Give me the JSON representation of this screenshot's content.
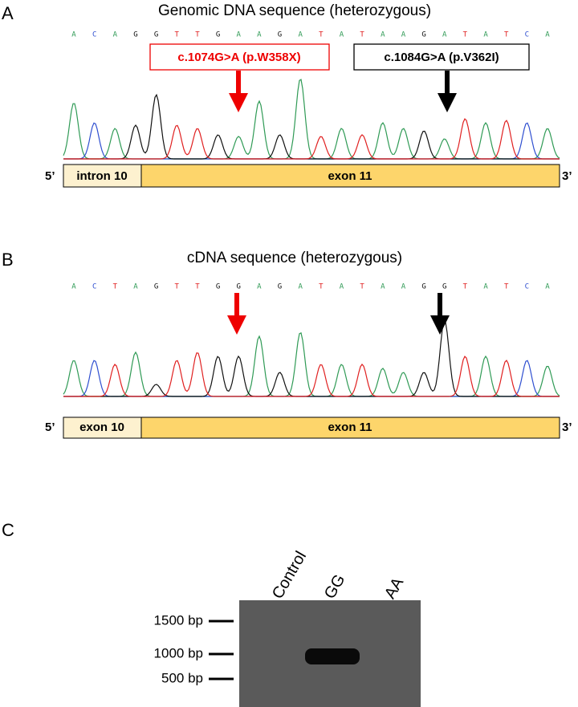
{
  "panel_a": {
    "label": "A",
    "title": "Genomic DNA sequence (heterozygous)",
    "bases": [
      "A",
      "C",
      "A",
      "G",
      "G",
      "T",
      "T",
      "G",
      "A",
      "A",
      "G",
      "A",
      "T",
      "A",
      "T",
      "A",
      "A",
      "G",
      "A",
      "T",
      "A",
      "T",
      "C",
      "A"
    ],
    "mutation_1": "c.1074G>A (p.W358X)",
    "mutation_2": "c.1084G>A (p.V362I)",
    "five_prime": "5’",
    "three_prime": "3’",
    "segment_1": "intron 10",
    "segment_2": "exon 11"
  },
  "panel_b": {
    "label": "B",
    "title": "cDNA sequence (heterozygous)",
    "bases": [
      "A",
      "C",
      "T",
      "A",
      "G",
      "T",
      "T",
      "G",
      "G",
      "A",
      "G",
      "A",
      "T",
      "A",
      "T",
      "A",
      "A",
      "G",
      "G",
      "T",
      "A",
      "T",
      "C",
      "A"
    ],
    "five_prime": "5’",
    "three_prime": "3’",
    "segment_1": "exon 10",
    "segment_2": "exon 11"
  },
  "panel_c": {
    "label": "C",
    "lanes": [
      "Control",
      "GG",
      "AA"
    ],
    "ladder": [
      "1500 bp",
      "1000 bp",
      "500 bp"
    ]
  }
}
